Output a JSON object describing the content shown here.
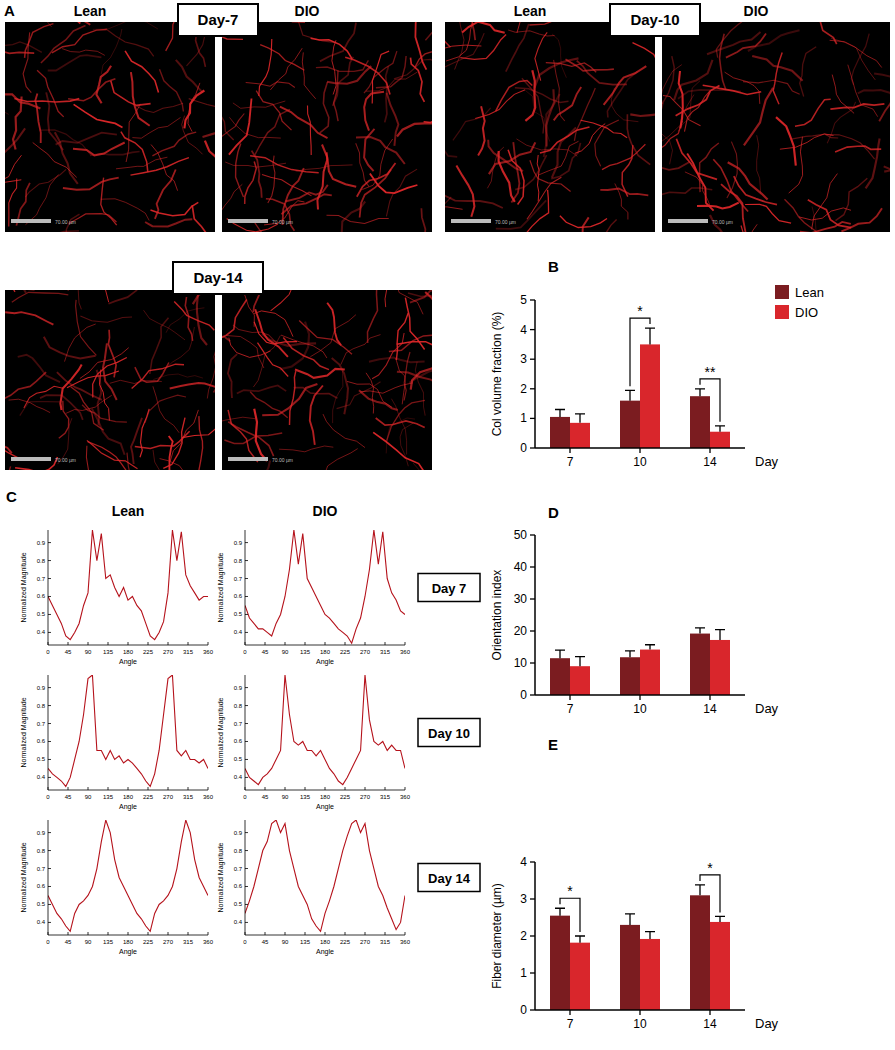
{
  "micrographs": {
    "panel": "A",
    "groups": [
      {
        "title": "Day-7",
        "labels": [
          "Lean",
          "DIO"
        ]
      },
      {
        "title": "Day-10",
        "labels": [
          "Lean",
          "DIO"
        ]
      },
      {
        "title": "Day-14"
      }
    ],
    "scale_bar": "70.00 µm"
  },
  "chart_data": [
    {
      "panel": "B",
      "type": "bar",
      "y_label": "Col volume fraction (%)",
      "x_label": "Day",
      "categories": [
        "7",
        "10",
        "14"
      ],
      "ylim": [
        0,
        5
      ],
      "yticks": [
        0,
        1,
        2,
        3,
        4,
        5
      ],
      "legend": "right",
      "series": [
        {
          "name": "Lean",
          "color": "#7b1c20",
          "values": [
            1.05,
            1.6,
            1.75
          ],
          "errors": [
            0.25,
            0.35,
            0.25
          ]
        },
        {
          "name": "DIO",
          "color": "#d9262c",
          "values": [
            0.85,
            3.5,
            0.55
          ],
          "errors": [
            0.3,
            0.55,
            0.2
          ]
        }
      ],
      "annotations": [
        {
          "category": "10",
          "text": "*"
        },
        {
          "category": "14",
          "text": "**"
        }
      ]
    },
    {
      "panel": "C",
      "type": "line",
      "column_labels": [
        "Lean",
        "DIO"
      ],
      "row_labels": [
        "Day 7",
        "Day 10",
        "Day 14"
      ],
      "x_label": "Angle",
      "y_label": "Normalized Magnitude",
      "x": [
        0,
        10,
        20,
        30,
        40,
        50,
        60,
        70,
        80,
        90,
        100,
        110,
        120,
        130,
        140,
        150,
        160,
        170,
        180,
        190,
        200,
        210,
        220,
        230,
        240,
        250,
        260,
        270,
        280,
        290,
        300,
        310,
        320,
        330,
        340,
        350,
        360
      ],
      "xlim": [
        0,
        360
      ],
      "xticks": [
        0,
        45,
        90,
        135,
        180,
        225,
        270,
        315,
        360
      ],
      "ylim": [
        0.33,
        0.97
      ],
      "yticks": [
        0.4,
        0.5,
        0.6,
        0.7,
        0.8,
        0.9
      ],
      "series": [
        {
          "color": "#b5121b",
          "values": [
            0.6,
            0.55,
            0.5,
            0.45,
            0.38,
            0.36,
            0.4,
            0.45,
            0.55,
            0.62,
            0.97,
            0.8,
            0.95,
            0.7,
            0.72,
            0.65,
            0.6,
            0.65,
            0.58,
            0.6,
            0.55,
            0.52,
            0.45,
            0.38,
            0.36,
            0.4,
            0.46,
            0.62,
            0.97,
            0.8,
            0.96,
            0.72,
            0.66,
            0.62,
            0.58,
            0.6,
            0.6
          ]
        },
        {
          "color": "#b5121b",
          "values": [
            0.55,
            0.48,
            0.45,
            0.42,
            0.42,
            0.4,
            0.38,
            0.45,
            0.5,
            0.6,
            0.75,
            0.97,
            0.78,
            0.95,
            0.7,
            0.65,
            0.6,
            0.55,
            0.5,
            0.48,
            0.45,
            0.42,
            0.4,
            0.38,
            0.34,
            0.42,
            0.48,
            0.6,
            0.75,
            0.97,
            0.78,
            0.96,
            0.7,
            0.62,
            0.58,
            0.52,
            0.5
          ]
        },
        {
          "color": "#b5121b",
          "values": [
            0.45,
            0.42,
            0.4,
            0.38,
            0.35,
            0.4,
            0.5,
            0.6,
            0.75,
            0.95,
            0.97,
            0.55,
            0.55,
            0.5,
            0.55,
            0.5,
            0.52,
            0.48,
            0.5,
            0.48,
            0.45,
            0.42,
            0.38,
            0.35,
            0.42,
            0.55,
            0.75,
            0.95,
            0.97,
            0.55,
            0.52,
            0.55,
            0.5,
            0.5,
            0.48,
            0.5,
            0.45
          ]
        },
        {
          "color": "#b5121b",
          "values": [
            0.45,
            0.4,
            0.38,
            0.36,
            0.4,
            0.42,
            0.45,
            0.5,
            0.55,
            0.97,
            0.75,
            0.6,
            0.58,
            0.6,
            0.55,
            0.55,
            0.52,
            0.55,
            0.5,
            0.45,
            0.42,
            0.38,
            0.36,
            0.4,
            0.45,
            0.5,
            0.55,
            0.97,
            0.72,
            0.6,
            0.58,
            0.6,
            0.55,
            0.58,
            0.55,
            0.55,
            0.45
          ]
        },
        {
          "color": "#b5121b",
          "values": [
            0.55,
            0.5,
            0.45,
            0.42,
            0.38,
            0.35,
            0.45,
            0.5,
            0.52,
            0.55,
            0.6,
            0.7,
            0.85,
            0.97,
            0.9,
            0.75,
            0.65,
            0.6,
            0.55,
            0.5,
            0.45,
            0.42,
            0.38,
            0.35,
            0.45,
            0.5,
            0.52,
            0.55,
            0.6,
            0.7,
            0.85,
            0.97,
            0.9,
            0.75,
            0.65,
            0.6,
            0.55
          ]
        },
        {
          "color": "#b5121b",
          "values": [
            0.45,
            0.52,
            0.6,
            0.7,
            0.8,
            0.85,
            0.95,
            0.97,
            0.9,
            0.95,
            0.8,
            0.7,
            0.6,
            0.55,
            0.5,
            0.42,
            0.38,
            0.35,
            0.45,
            0.52,
            0.6,
            0.7,
            0.8,
            0.88,
            0.95,
            0.97,
            0.9,
            0.95,
            0.8,
            0.7,
            0.6,
            0.55,
            0.48,
            0.42,
            0.36,
            0.4,
            0.55
          ]
        }
      ]
    },
    {
      "panel": "D",
      "type": "bar",
      "y_label": "Orientation index",
      "x_label": "Day",
      "categories": [
        "7",
        "10",
        "14"
      ],
      "ylim": [
        0,
        50
      ],
      "yticks": [
        0,
        10,
        20,
        30,
        40,
        50
      ],
      "series": [
        {
          "name": "Lean",
          "color": "#7b1c20",
          "values": [
            11.5,
            11.8,
            19.2
          ],
          "errors": [
            2.5,
            2.0,
            1.8
          ]
        },
        {
          "name": "DIO",
          "color": "#d9262c",
          "values": [
            9.0,
            14.2,
            17.2
          ],
          "errors": [
            3.0,
            1.5,
            3.2
          ]
        }
      ]
    },
    {
      "panel": "E",
      "type": "bar",
      "y_label": "Fiber diameter (µm)",
      "x_label": "Day",
      "categories": [
        "7",
        "10",
        "14"
      ],
      "ylim": [
        0,
        4
      ],
      "yticks": [
        0,
        1,
        2,
        3,
        4
      ],
      "series": [
        {
          "name": "Lean",
          "color": "#7b1c20",
          "values": [
            2.55,
            2.3,
            3.1
          ],
          "errors": [
            0.2,
            0.3,
            0.28
          ]
        },
        {
          "name": "DIO",
          "color": "#d9262c",
          "values": [
            1.82,
            1.92,
            2.38
          ],
          "errors": [
            0.18,
            0.2,
            0.15
          ]
        }
      ],
      "annotations": [
        {
          "category": "7",
          "text": "*"
        },
        {
          "category": "14",
          "text": "*"
        }
      ]
    }
  ]
}
